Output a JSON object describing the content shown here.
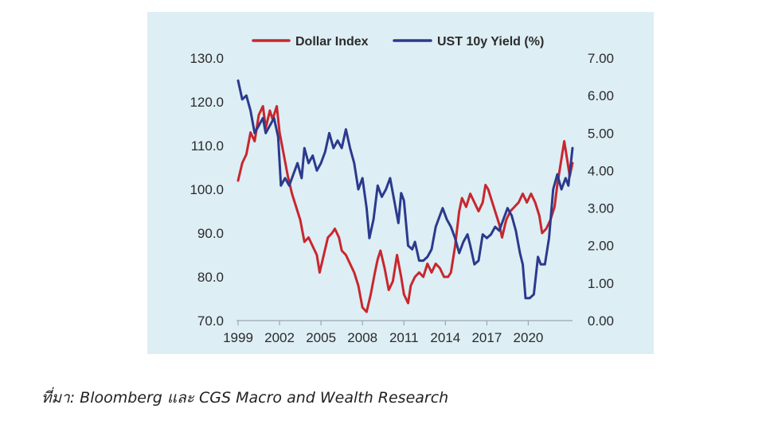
{
  "chart_data": {
    "type": "line",
    "title": "",
    "xlabel": "",
    "ylabel_left": "",
    "ylabel_right": "",
    "x_ticks": [
      "1999",
      "2002",
      "2005",
      "2008",
      "2011",
      "2014",
      "2017",
      "2020"
    ],
    "xlim": [
      1999,
      2023.2
    ],
    "y_left": {
      "lim": [
        70,
        130
      ],
      "ticks": [
        "70.0",
        "80.0",
        "90.0",
        "100.0",
        "110.0",
        "120.0",
        "130.0"
      ]
    },
    "y_right": {
      "lim": [
        0,
        7
      ],
      "ticks": [
        "0.00",
        "1.00",
        "2.00",
        "3.00",
        "4.00",
        "5.00",
        "6.00",
        "7.00"
      ]
    },
    "legend": {
      "placement": "top"
    },
    "grid": false,
    "series": [
      {
        "name": "Dollar Index",
        "axis": "left",
        "color": "#c8272d",
        "points": [
          [
            1999.0,
            102
          ],
          [
            1999.3,
            106
          ],
          [
            1999.6,
            108
          ],
          [
            1999.9,
            113
          ],
          [
            2000.2,
            111
          ],
          [
            2000.5,
            117
          ],
          [
            2000.8,
            119
          ],
          [
            2001.0,
            114
          ],
          [
            2001.3,
            118
          ],
          [
            2001.5,
            116
          ],
          [
            2001.8,
            119
          ],
          [
            2002.0,
            113
          ],
          [
            2002.3,
            108
          ],
          [
            2002.6,
            103
          ],
          [
            2002.9,
            99
          ],
          [
            2003.2,
            96
          ],
          [
            2003.5,
            93
          ],
          [
            2003.8,
            88
          ],
          [
            2004.1,
            89
          ],
          [
            2004.4,
            87
          ],
          [
            2004.7,
            85
          ],
          [
            2004.9,
            81
          ],
          [
            2005.2,
            85
          ],
          [
            2005.5,
            89
          ],
          [
            2005.8,
            90
          ],
          [
            2006.0,
            91
          ],
          [
            2006.3,
            89
          ],
          [
            2006.5,
            86
          ],
          [
            2006.8,
            85
          ],
          [
            2007.1,
            83
          ],
          [
            2007.4,
            81
          ],
          [
            2007.7,
            78
          ],
          [
            2008.0,
            73
          ],
          [
            2008.3,
            72
          ],
          [
            2008.6,
            76
          ],
          [
            2008.9,
            81
          ],
          [
            2009.1,
            84
          ],
          [
            2009.3,
            86
          ],
          [
            2009.6,
            82
          ],
          [
            2009.9,
            77
          ],
          [
            2010.2,
            79
          ],
          [
            2010.5,
            85
          ],
          [
            2010.8,
            80
          ],
          [
            2011.0,
            76
          ],
          [
            2011.3,
            74
          ],
          [
            2011.5,
            78
          ],
          [
            2011.8,
            80
          ],
          [
            2012.1,
            81
          ],
          [
            2012.4,
            80
          ],
          [
            2012.7,
            83
          ],
          [
            2013.0,
            81
          ],
          [
            2013.3,
            83
          ],
          [
            2013.6,
            82
          ],
          [
            2013.9,
            80
          ],
          [
            2014.2,
            80
          ],
          [
            2014.4,
            81
          ],
          [
            2014.7,
            87
          ],
          [
            2015.0,
            95
          ],
          [
            2015.2,
            98
          ],
          [
            2015.5,
            96
          ],
          [
            2015.8,
            99
          ],
          [
            2016.1,
            97
          ],
          [
            2016.4,
            95
          ],
          [
            2016.7,
            97
          ],
          [
            2016.9,
            101
          ],
          [
            2017.1,
            100
          ],
          [
            2017.4,
            97
          ],
          [
            2017.7,
            94
          ],
          [
            2017.9,
            92
          ],
          [
            2018.1,
            89
          ],
          [
            2018.4,
            93
          ],
          [
            2018.7,
            95
          ],
          [
            2019.0,
            96
          ],
          [
            2019.3,
            97
          ],
          [
            2019.6,
            99
          ],
          [
            2019.9,
            97
          ],
          [
            2020.2,
            99
          ],
          [
            2020.5,
            97
          ],
          [
            2020.8,
            94
          ],
          [
            2021.0,
            90
          ],
          [
            2021.3,
            91
          ],
          [
            2021.6,
            93
          ],
          [
            2021.9,
            96
          ],
          [
            2022.1,
            101
          ],
          [
            2022.4,
            107
          ],
          [
            2022.6,
            111
          ],
          [
            2022.8,
            107
          ],
          [
            2023.0,
            103
          ],
          [
            2023.2,
            106
          ]
        ]
      },
      {
        "name": "UST 10y Yield (%)",
        "axis": "right",
        "color": "#2b3a8c",
        "points": [
          [
            1999.0,
            6.4
          ],
          [
            1999.3,
            5.9
          ],
          [
            1999.6,
            6.0
          ],
          [
            1999.9,
            5.6
          ],
          [
            2000.2,
            5.0
          ],
          [
            2000.5,
            5.2
          ],
          [
            2000.8,
            5.4
          ],
          [
            2001.0,
            5.0
          ],
          [
            2001.3,
            5.2
          ],
          [
            2001.6,
            5.4
          ],
          [
            2001.9,
            4.9
          ],
          [
            2002.1,
            3.6
          ],
          [
            2002.4,
            3.8
          ],
          [
            2002.7,
            3.6
          ],
          [
            2003.0,
            3.9
          ],
          [
            2003.3,
            4.2
          ],
          [
            2003.6,
            3.8
          ],
          [
            2003.8,
            4.6
          ],
          [
            2004.1,
            4.2
          ],
          [
            2004.4,
            4.4
          ],
          [
            2004.7,
            4.0
          ],
          [
            2005.0,
            4.2
          ],
          [
            2005.3,
            4.5
          ],
          [
            2005.6,
            5.0
          ],
          [
            2005.9,
            4.6
          ],
          [
            2006.2,
            4.8
          ],
          [
            2006.5,
            4.6
          ],
          [
            2006.8,
            5.1
          ],
          [
            2007.1,
            4.6
          ],
          [
            2007.4,
            4.2
          ],
          [
            2007.7,
            3.5
          ],
          [
            2008.0,
            3.8
          ],
          [
            2008.3,
            3.0
          ],
          [
            2008.5,
            2.2
          ],
          [
            2008.8,
            2.7
          ],
          [
            2009.1,
            3.6
          ],
          [
            2009.4,
            3.3
          ],
          [
            2009.7,
            3.5
          ],
          [
            2010.0,
            3.8
          ],
          [
            2010.3,
            3.2
          ],
          [
            2010.6,
            2.6
          ],
          [
            2010.8,
            3.4
          ],
          [
            2011.0,
            3.2
          ],
          [
            2011.3,
            2.0
          ],
          [
            2011.6,
            1.9
          ],
          [
            2011.8,
            2.1
          ],
          [
            2012.1,
            1.6
          ],
          [
            2012.4,
            1.6
          ],
          [
            2012.7,
            1.7
          ],
          [
            2013.0,
            1.9
          ],
          [
            2013.3,
            2.5
          ],
          [
            2013.6,
            2.8
          ],
          [
            2013.8,
            3.0
          ],
          [
            2014.1,
            2.7
          ],
          [
            2014.4,
            2.5
          ],
          [
            2014.7,
            2.2
          ],
          [
            2015.0,
            1.8
          ],
          [
            2015.3,
            2.1
          ],
          [
            2015.6,
            2.3
          ],
          [
            2015.8,
            2.0
          ],
          [
            2016.1,
            1.5
          ],
          [
            2016.4,
            1.6
          ],
          [
            2016.7,
            2.3
          ],
          [
            2017.0,
            2.2
          ],
          [
            2017.3,
            2.3
          ],
          [
            2017.6,
            2.5
          ],
          [
            2017.9,
            2.4
          ],
          [
            2018.2,
            2.7
          ],
          [
            2018.5,
            3.0
          ],
          [
            2018.8,
            2.8
          ],
          [
            2019.1,
            2.4
          ],
          [
            2019.4,
            1.8
          ],
          [
            2019.6,
            1.5
          ],
          [
            2019.8,
            0.6
          ],
          [
            2020.1,
            0.6
          ],
          [
            2020.4,
            0.7
          ],
          [
            2020.7,
            1.7
          ],
          [
            2020.9,
            1.5
          ],
          [
            2021.2,
            1.5
          ],
          [
            2021.5,
            2.2
          ],
          [
            2021.8,
            3.5
          ],
          [
            2022.1,
            3.9
          ],
          [
            2022.4,
            3.5
          ],
          [
            2022.7,
            3.8
          ],
          [
            2022.9,
            3.6
          ],
          [
            2023.2,
            4.6
          ]
        ]
      }
    ]
  },
  "caption": "ที่มา: Bloomberg และ CGS Macro and Wealth Research"
}
